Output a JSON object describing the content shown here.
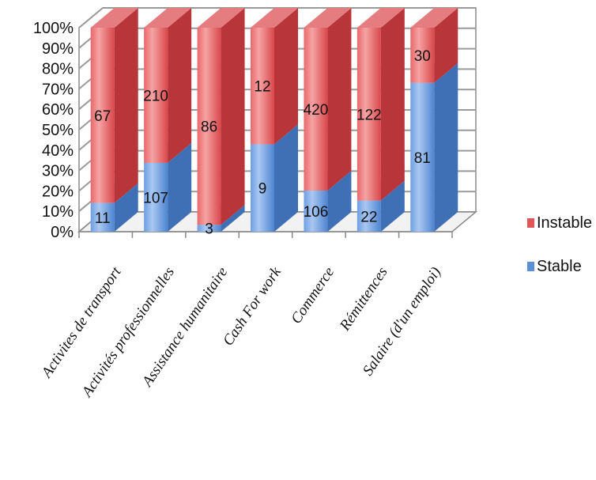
{
  "chart_data": {
    "type": "bar",
    "stacked": "percent",
    "categories": [
      "Activites de transport",
      "Activités professionnelles",
      "Assistance humanitaire",
      "Cash For work",
      "Commerce",
      "Rémittences",
      "Salaire (d'un emploi)"
    ],
    "series": [
      {
        "name": "Stable",
        "values": [
          11,
          107,
          3,
          9,
          106,
          22,
          81
        ],
        "color": "#5b8fd6"
      },
      {
        "name": "Instable",
        "values": [
          67,
          210,
          86,
          12,
          420,
          122,
          30
        ],
        "color": "#e0575a"
      }
    ],
    "ylim": [
      0,
      100
    ],
    "yticks": [
      "0%",
      "10%",
      "20%",
      "30%",
      "40%",
      "50%",
      "60%",
      "70%",
      "80%",
      "90%",
      "100%"
    ],
    "grid": true,
    "legend_position": "right",
    "legend_order": [
      "Instable",
      "Stable"
    ]
  }
}
